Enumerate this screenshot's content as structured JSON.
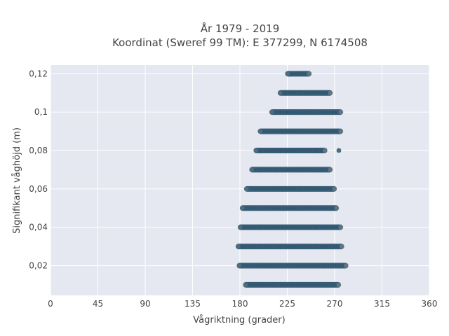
{
  "chart_data": {
    "type": "scatter",
    "title_line1": "År 1979 - 2019",
    "title_line2": "Koordinat (Sweref 99 TM): E 377299, N 6174508",
    "xlabel": "Vågriktning (grader)",
    "ylabel": "Signifikant våghöjd (m)",
    "xlim": [
      0,
      360
    ],
    "ylim": [
      0.0045,
      0.1245
    ],
    "x_ticks": [
      0,
      45,
      90,
      135,
      180,
      225,
      270,
      315,
      360
    ],
    "x_tick_labels": [
      "0",
      "45",
      "90",
      "135",
      "180",
      "225",
      "270",
      "315",
      "360"
    ],
    "y_ticks": [
      0.02,
      0.04,
      0.06,
      0.08,
      0.1,
      0.12
    ],
    "y_tick_labels": [
      "0,02",
      "0,04",
      "0,06",
      "0,08",
      "0,1",
      "0,12"
    ],
    "grid": true,
    "marker_color": "#2f5670",
    "plot_background": "#e5e8f0",
    "bands": [
      {
        "y": 0.01,
        "x_min": 183,
        "x_max": 276
      },
      {
        "y": 0.02,
        "x_min": 177,
        "x_max": 283
      },
      {
        "y": 0.03,
        "x_min": 176,
        "x_max": 279
      },
      {
        "y": 0.04,
        "x_min": 178,
        "x_max": 278
      },
      {
        "y": 0.05,
        "x_min": 180,
        "x_max": 274
      },
      {
        "y": 0.06,
        "x_min": 184,
        "x_max": 272
      },
      {
        "y": 0.07,
        "x_min": 189,
        "x_max": 268
      },
      {
        "y": 0.08,
        "x_min": 193,
        "x_max": 263
      },
      {
        "y": 0.09,
        "x_min": 197,
        "x_max": 278
      },
      {
        "y": 0.1,
        "x_min": 208,
        "x_max": 278
      },
      {
        "y": 0.11,
        "x_min": 216,
        "x_max": 268
      },
      {
        "y": 0.12,
        "x_min": 223,
        "x_max": 248
      }
    ],
    "outliers": [
      {
        "x": 274,
        "y": 0.08
      }
    ]
  }
}
